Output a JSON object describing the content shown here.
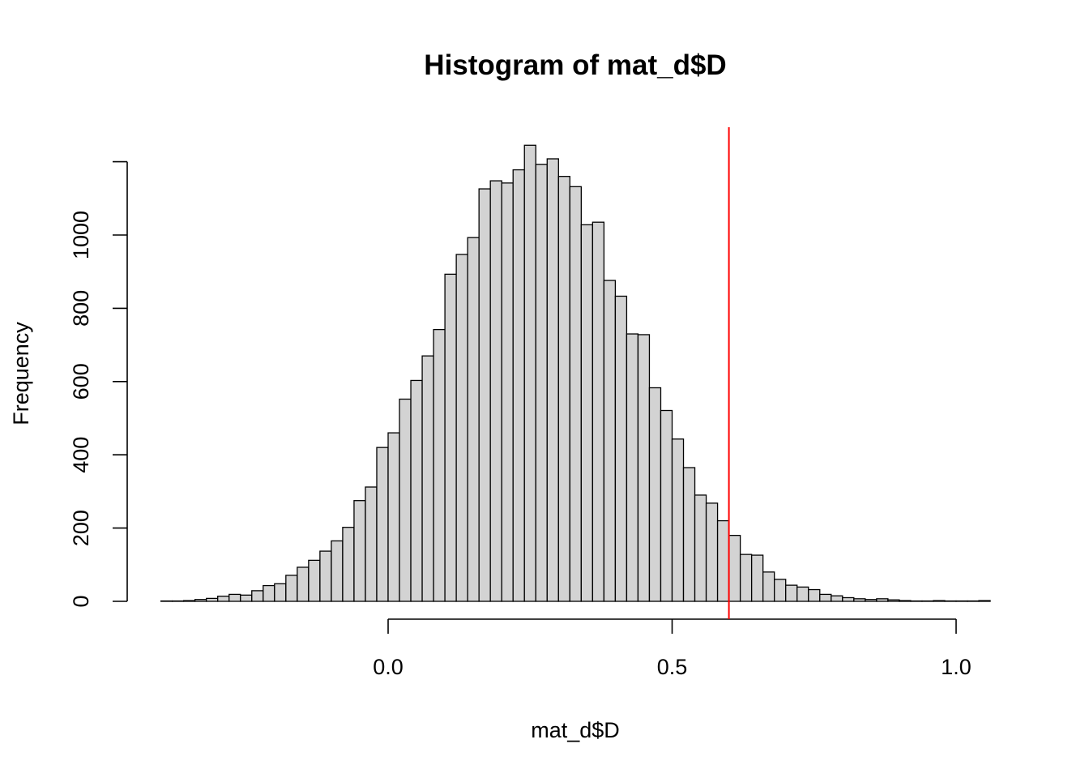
{
  "chart_data": {
    "type": "bar",
    "title": "Histogram of mat_d$D",
    "xlabel": "mat_d$D",
    "ylabel": "Frequency",
    "bin_width": 0.02,
    "bin_start": -0.4,
    "values": [
      1,
      1,
      2,
      5,
      8,
      14,
      19,
      17,
      29,
      43,
      48,
      71,
      93,
      112,
      137,
      165,
      202,
      275,
      312,
      420,
      460,
      552,
      603,
      670,
      742,
      893,
      947,
      993,
      1126,
      1148,
      1142,
      1178,
      1245,
      1193,
      1208,
      1160,
      1132,
      1028,
      1035,
      876,
      833,
      730,
      728,
      583,
      521,
      443,
      365,
      290,
      268,
      220,
      180,
      128,
      126,
      80,
      60,
      44,
      39,
      32,
      19,
      15,
      10,
      7,
      5,
      7,
      4,
      2,
      1,
      1,
      2,
      1,
      1,
      1,
      2
    ],
    "xlim": [
      -0.46,
      1.06
    ],
    "ylim": [
      0,
      1300
    ],
    "x_ticks": [
      {
        "value": 0.0,
        "label": "0.0"
      },
      {
        "value": 0.5,
        "label": "0.5"
      },
      {
        "value": 1.0,
        "label": "1.0"
      }
    ],
    "y_ticks": [
      {
        "value": 0,
        "label": "0"
      },
      {
        "value": 200,
        "label": "200"
      },
      {
        "value": 400,
        "label": "400"
      },
      {
        "value": 600,
        "label": "600"
      },
      {
        "value": 800,
        "label": "800"
      },
      {
        "value": 1000,
        "label": "1000"
      }
    ],
    "reference_line": {
      "x": 0.6,
      "color": "#ff0000"
    },
    "bar_fill": "#d3d3d3",
    "bar_stroke": "#000000",
    "grid": false
  }
}
